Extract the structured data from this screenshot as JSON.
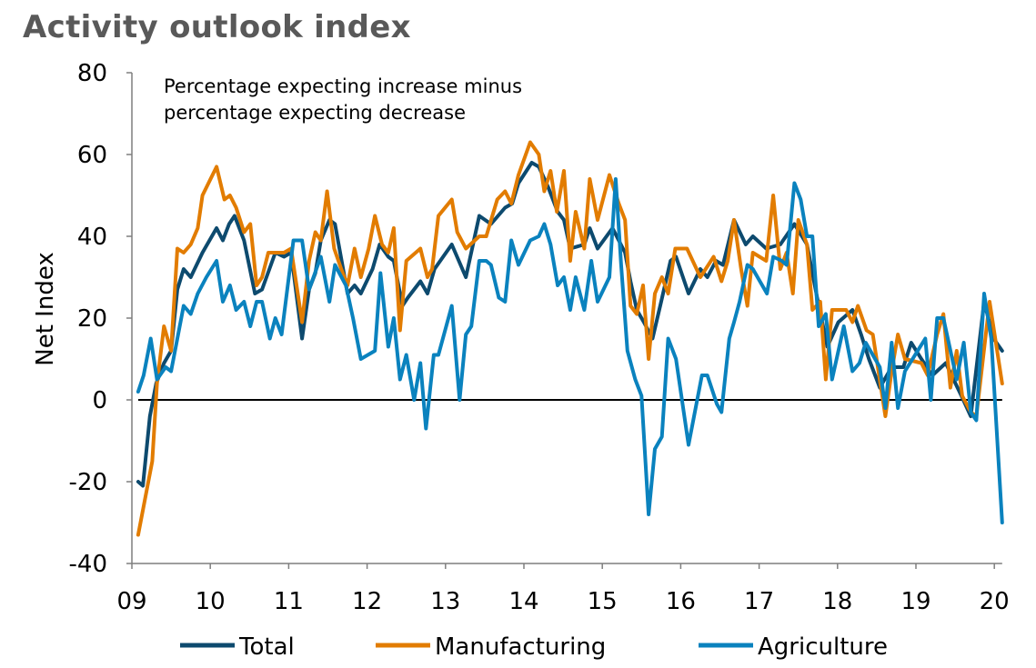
{
  "chart_data": {
    "type": "line",
    "title": "Activity outlook index",
    "annotation": [
      "Percentage expecting increase minus",
      "percentage expecting decrease"
    ],
    "xlabel": "",
    "ylabel": "Net Index",
    "x_origin_year": 2009,
    "xlim": [
      0,
      11.1
    ],
    "ylim": [
      -40,
      80
    ],
    "yticks": [
      -40,
      -20,
      0,
      20,
      40,
      60,
      80
    ],
    "ytick_labels": [
      "-40",
      "-20",
      "0",
      "20",
      "40",
      "60",
      "80"
    ],
    "xticks": [
      0,
      1,
      2,
      3,
      4,
      5,
      6,
      7,
      8,
      9,
      10,
      11
    ],
    "xtick_labels": [
      "09",
      "10",
      "11",
      "12",
      "13",
      "14",
      "15",
      "16",
      "17",
      "18",
      "19",
      "20"
    ],
    "grid": false,
    "legend_position": "bottom",
    "reference_line": 0,
    "series": [
      {
        "name": "Total",
        "color": "#0d4a6e",
        "points": [
          [
            0.08,
            -20
          ],
          [
            0.14,
            -21
          ],
          [
            0.23,
            -4
          ],
          [
            0.31,
            4
          ],
          [
            0.41,
            9
          ],
          [
            0.5,
            12
          ],
          [
            0.58,
            27
          ],
          [
            0.66,
            32
          ],
          [
            0.75,
            30
          ],
          [
            0.9,
            36
          ],
          [
            1.08,
            42
          ],
          [
            1.16,
            39
          ],
          [
            1.24,
            43
          ],
          [
            1.31,
            45
          ],
          [
            1.43,
            39
          ],
          [
            1.57,
            26
          ],
          [
            1.66,
            27
          ],
          [
            1.83,
            36
          ],
          [
            1.94,
            35
          ],
          [
            2.03,
            36
          ],
          [
            2.17,
            15
          ],
          [
            2.26,
            27
          ],
          [
            2.34,
            31
          ],
          [
            2.41,
            39
          ],
          [
            2.52,
            44
          ],
          [
            2.59,
            43
          ],
          [
            2.75,
            26
          ],
          [
            2.84,
            28
          ],
          [
            2.92,
            26
          ],
          [
            3.07,
            32
          ],
          [
            3.16,
            38
          ],
          [
            3.27,
            35
          ],
          [
            3.34,
            34
          ],
          [
            3.45,
            23
          ],
          [
            3.52,
            25
          ],
          [
            3.68,
            29
          ],
          [
            3.77,
            26
          ],
          [
            3.86,
            32
          ],
          [
            4.08,
            38
          ],
          [
            4.26,
            30
          ],
          [
            4.43,
            45
          ],
          [
            4.58,
            43
          ],
          [
            4.76,
            47
          ],
          [
            4.85,
            48
          ],
          [
            4.93,
            53
          ],
          [
            5.1,
            58
          ],
          [
            5.19,
            57
          ],
          [
            5.31,
            52
          ],
          [
            5.43,
            46
          ],
          [
            5.51,
            44
          ],
          [
            5.59,
            37
          ],
          [
            5.77,
            38
          ],
          [
            5.84,
            42
          ],
          [
            5.94,
            37
          ],
          [
            6.13,
            42
          ],
          [
            6.29,
            36
          ],
          [
            6.36,
            29
          ],
          [
            6.44,
            22
          ],
          [
            6.53,
            19
          ],
          [
            6.64,
            15
          ],
          [
            6.75,
            24
          ],
          [
            6.87,
            34
          ],
          [
            6.94,
            35
          ],
          [
            7.1,
            26
          ],
          [
            7.25,
            32
          ],
          [
            7.34,
            30
          ],
          [
            7.45,
            34
          ],
          [
            7.54,
            33
          ],
          [
            7.68,
            44
          ],
          [
            7.83,
            38
          ],
          [
            7.92,
            40
          ],
          [
            8.09,
            37
          ],
          [
            8.27,
            38
          ],
          [
            8.45,
            43
          ],
          [
            8.61,
            38
          ],
          [
            8.74,
            25
          ],
          [
            8.87,
            13
          ],
          [
            9.01,
            19
          ],
          [
            9.19,
            22
          ],
          [
            9.3,
            16
          ],
          [
            9.4,
            10
          ],
          [
            9.54,
            3
          ],
          [
            9.69,
            8
          ],
          [
            9.84,
            8
          ],
          [
            9.94,
            14
          ],
          [
            10.07,
            10
          ],
          [
            10.21,
            6
          ],
          [
            10.38,
            9
          ],
          [
            10.58,
            1
          ],
          [
            10.7,
            -4
          ],
          [
            10.87,
            24
          ],
          [
            10.99,
            15
          ],
          [
            11.1,
            12
          ]
        ]
      },
      {
        "name": "Manufacturing",
        "color": "#e27c00",
        "points": [
          [
            0.08,
            -33
          ],
          [
            0.26,
            -15
          ],
          [
            0.32,
            4
          ],
          [
            0.41,
            18
          ],
          [
            0.5,
            12
          ],
          [
            0.58,
            37
          ],
          [
            0.66,
            36
          ],
          [
            0.75,
            38
          ],
          [
            0.84,
            42
          ],
          [
            0.9,
            50
          ],
          [
            1.08,
            57
          ],
          [
            1.18,
            49
          ],
          [
            1.25,
            50
          ],
          [
            1.33,
            47
          ],
          [
            1.43,
            41
          ],
          [
            1.51,
            43
          ],
          [
            1.59,
            28
          ],
          [
            1.66,
            30
          ],
          [
            1.74,
            36
          ],
          [
            1.83,
            36
          ],
          [
            1.94,
            36
          ],
          [
            2.03,
            37
          ],
          [
            2.17,
            19
          ],
          [
            2.26,
            34
          ],
          [
            2.34,
            41
          ],
          [
            2.41,
            39
          ],
          [
            2.49,
            51
          ],
          [
            2.58,
            37
          ],
          [
            2.67,
            32
          ],
          [
            2.75,
            28
          ],
          [
            2.84,
            37
          ],
          [
            2.92,
            30
          ],
          [
            3.02,
            37
          ],
          [
            3.1,
            45
          ],
          [
            3.19,
            38
          ],
          [
            3.27,
            36
          ],
          [
            3.34,
            42
          ],
          [
            3.42,
            17
          ],
          [
            3.5,
            34
          ],
          [
            3.68,
            37
          ],
          [
            3.77,
            30
          ],
          [
            3.83,
            32
          ],
          [
            3.91,
            45
          ],
          [
            4.08,
            49
          ],
          [
            4.15,
            41
          ],
          [
            4.26,
            37
          ],
          [
            4.43,
            40
          ],
          [
            4.52,
            40
          ],
          [
            4.66,
            49
          ],
          [
            4.76,
            51
          ],
          [
            4.84,
            48
          ],
          [
            4.93,
            55
          ],
          [
            5.08,
            63
          ],
          [
            5.19,
            60
          ],
          [
            5.26,
            51
          ],
          [
            5.34,
            56
          ],
          [
            5.42,
            46
          ],
          [
            5.51,
            56
          ],
          [
            5.59,
            34
          ],
          [
            5.66,
            46
          ],
          [
            5.77,
            37
          ],
          [
            5.84,
            54
          ],
          [
            5.94,
            44
          ],
          [
            6.09,
            55
          ],
          [
            6.21,
            48
          ],
          [
            6.29,
            44
          ],
          [
            6.36,
            23
          ],
          [
            6.44,
            21
          ],
          [
            6.52,
            28
          ],
          [
            6.59,
            10
          ],
          [
            6.67,
            26
          ],
          [
            6.76,
            30
          ],
          [
            6.84,
            26
          ],
          [
            6.93,
            37
          ],
          [
            7.08,
            37
          ],
          [
            7.25,
            30
          ],
          [
            7.42,
            35
          ],
          [
            7.52,
            29
          ],
          [
            7.6,
            34
          ],
          [
            7.68,
            44
          ],
          [
            7.77,
            32
          ],
          [
            7.85,
            23
          ],
          [
            7.92,
            36
          ],
          [
            8.09,
            34
          ],
          [
            8.18,
            50
          ],
          [
            8.27,
            32
          ],
          [
            8.35,
            36
          ],
          [
            8.43,
            26
          ],
          [
            8.5,
            44
          ],
          [
            8.61,
            38
          ],
          [
            8.68,
            22
          ],
          [
            8.78,
            24
          ],
          [
            8.85,
            5
          ],
          [
            8.93,
            22
          ],
          [
            9.11,
            22
          ],
          [
            9.19,
            19
          ],
          [
            9.26,
            23
          ],
          [
            9.37,
            17
          ],
          [
            9.45,
            16
          ],
          [
            9.61,
            -4
          ],
          [
            9.69,
            7
          ],
          [
            9.77,
            16
          ],
          [
            9.86,
            10
          ],
          [
            10.07,
            9
          ],
          [
            10.15,
            6
          ],
          [
            10.27,
            16
          ],
          [
            10.35,
            21
          ],
          [
            10.44,
            3
          ],
          [
            10.52,
            12
          ],
          [
            10.59,
            1
          ],
          [
            10.7,
            -3
          ],
          [
            10.77,
            -4
          ],
          [
            10.94,
            24
          ],
          [
            11.1,
            4
          ]
        ]
      },
      {
        "name": "Agriculture",
        "color": "#0a82be",
        "points": [
          [
            0.08,
            2
          ],
          [
            0.15,
            6
          ],
          [
            0.24,
            15
          ],
          [
            0.32,
            5
          ],
          [
            0.43,
            8
          ],
          [
            0.5,
            7
          ],
          [
            0.66,
            23
          ],
          [
            0.75,
            21
          ],
          [
            0.84,
            26
          ],
          [
            0.95,
            30
          ],
          [
            1.08,
            34
          ],
          [
            1.16,
            24
          ],
          [
            1.25,
            28
          ],
          [
            1.33,
            22
          ],
          [
            1.43,
            24
          ],
          [
            1.51,
            18
          ],
          [
            1.59,
            24
          ],
          [
            1.66,
            24
          ],
          [
            1.76,
            15
          ],
          [
            1.83,
            20
          ],
          [
            1.91,
            16
          ],
          [
            2.06,
            39
          ],
          [
            2.17,
            39
          ],
          [
            2.26,
            27
          ],
          [
            2.41,
            35
          ],
          [
            2.52,
            24
          ],
          [
            2.59,
            33
          ],
          [
            2.73,
            28
          ],
          [
            2.82,
            20
          ],
          [
            2.92,
            10
          ],
          [
            3.1,
            12
          ],
          [
            3.17,
            31
          ],
          [
            3.27,
            13
          ],
          [
            3.34,
            20
          ],
          [
            3.42,
            5
          ],
          [
            3.5,
            11
          ],
          [
            3.6,
            0
          ],
          [
            3.68,
            9
          ],
          [
            3.75,
            -7
          ],
          [
            3.85,
            11
          ],
          [
            3.91,
            11
          ],
          [
            4.08,
            23
          ],
          [
            4.18,
            0
          ],
          [
            4.26,
            16
          ],
          [
            4.33,
            18
          ],
          [
            4.43,
            34
          ],
          [
            4.52,
            34
          ],
          [
            4.58,
            33
          ],
          [
            4.68,
            25
          ],
          [
            4.76,
            24
          ],
          [
            4.84,
            39
          ],
          [
            4.93,
            33
          ],
          [
            5.08,
            39
          ],
          [
            5.19,
            40
          ],
          [
            5.26,
            43
          ],
          [
            5.34,
            38
          ],
          [
            5.43,
            28
          ],
          [
            5.51,
            30
          ],
          [
            5.59,
            22
          ],
          [
            5.66,
            30
          ],
          [
            5.77,
            22
          ],
          [
            5.86,
            34
          ],
          [
            5.94,
            24
          ],
          [
            6.09,
            30
          ],
          [
            6.17,
            54
          ],
          [
            6.24,
            33
          ],
          [
            6.32,
            12
          ],
          [
            6.42,
            5
          ],
          [
            6.5,
            1
          ],
          [
            6.59,
            -28
          ],
          [
            6.67,
            -12
          ],
          [
            6.76,
            -9
          ],
          [
            6.84,
            15
          ],
          [
            6.94,
            10
          ],
          [
            7.1,
            -11
          ],
          [
            7.27,
            6
          ],
          [
            7.34,
            6
          ],
          [
            7.46,
            -1
          ],
          [
            7.52,
            -3
          ],
          [
            7.62,
            15
          ],
          [
            7.68,
            19
          ],
          [
            7.75,
            24
          ],
          [
            7.85,
            33
          ],
          [
            7.92,
            32
          ],
          [
            8.1,
            26
          ],
          [
            8.18,
            35
          ],
          [
            8.29,
            34
          ],
          [
            8.35,
            33
          ],
          [
            8.45,
            53
          ],
          [
            8.53,
            49
          ],
          [
            8.61,
            40
          ],
          [
            8.68,
            40
          ],
          [
            8.76,
            18
          ],
          [
            8.85,
            21
          ],
          [
            8.93,
            5
          ],
          [
            9.08,
            18
          ],
          [
            9.19,
            7
          ],
          [
            9.28,
            9
          ],
          [
            9.36,
            14
          ],
          [
            9.54,
            8
          ],
          [
            9.61,
            -2
          ],
          [
            9.69,
            14
          ],
          [
            9.77,
            -2
          ],
          [
            9.86,
            7
          ],
          [
            10.12,
            15
          ],
          [
            10.19,
            0
          ],
          [
            10.27,
            20
          ],
          [
            10.35,
            20
          ],
          [
            10.52,
            5
          ],
          [
            10.61,
            14
          ],
          [
            10.7,
            -3
          ],
          [
            10.77,
            -5
          ],
          [
            10.87,
            26
          ],
          [
            10.96,
            15
          ],
          [
            11.1,
            -30
          ]
        ]
      }
    ]
  }
}
